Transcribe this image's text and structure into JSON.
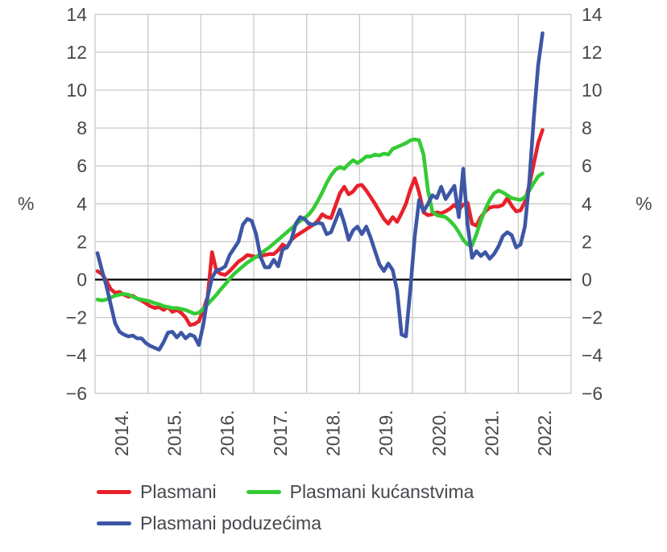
{
  "chart_data": {
    "type": "line",
    "title": "",
    "ylabel_left": "%",
    "ylabel_right": "%",
    "x_start": "2014-01",
    "x_end": "2022-06",
    "x_frequency": "monthly",
    "year_tick_labels": [
      "2014.",
      "2015.",
      "2016.",
      "2017.",
      "2018.",
      "2019.",
      "2020.",
      "2021.",
      "2022."
    ],
    "y_ticks": [
      14,
      12,
      10,
      8,
      6,
      4,
      2,
      0,
      -2,
      -4,
      -6
    ],
    "ylim": [
      -6,
      14
    ],
    "grid": true,
    "zero_line_color": "#000000",
    "grid_color": "#c9c9c9",
    "text_color": "#45484c",
    "legend_position": "bottom",
    "series": [
      {
        "name": "Plasmani",
        "color": "#e8212a",
        "values": [
          0.45,
          0.3,
          -0.05,
          -0.5,
          -0.7,
          -0.65,
          -0.8,
          -0.9,
          -0.85,
          -1.0,
          -1.1,
          -1.25,
          -1.4,
          -1.5,
          -1.45,
          -1.6,
          -1.45,
          -1.7,
          -1.6,
          -1.75,
          -2.0,
          -2.4,
          -2.35,
          -2.2,
          -1.6,
          -0.9,
          1.45,
          0.45,
          0.3,
          0.25,
          0.45,
          0.7,
          0.95,
          1.1,
          1.3,
          1.25,
          1.2,
          1.25,
          1.3,
          1.35,
          1.35,
          1.55,
          1.85,
          1.7,
          2.1,
          2.3,
          2.45,
          2.6,
          2.75,
          2.9,
          3.1,
          3.45,
          3.3,
          3.25,
          3.9,
          4.55,
          4.9,
          4.5,
          4.65,
          4.95,
          5.0,
          4.7,
          4.35,
          4.0,
          3.6,
          3.2,
          2.95,
          3.3,
          3.05,
          3.5,
          4.0,
          4.75,
          5.35,
          4.6,
          3.55,
          3.4,
          3.45,
          3.55,
          3.5,
          3.6,
          3.75,
          3.95,
          3.7,
          3.95,
          4.05,
          2.95,
          2.85,
          3.3,
          3.6,
          3.8,
          3.85,
          3.85,
          3.95,
          4.3,
          3.9,
          3.6,
          3.65,
          4.1,
          5.0,
          6.1,
          7.2,
          7.9
        ]
      },
      {
        "name": "Plasmani kućanstvima",
        "color": "#35cb35",
        "values": [
          -1.05,
          -1.1,
          -1.05,
          -0.95,
          -0.85,
          -0.8,
          -0.75,
          -0.8,
          -0.9,
          -1.0,
          -1.05,
          -1.1,
          -1.15,
          -1.25,
          -1.3,
          -1.4,
          -1.45,
          -1.5,
          -1.5,
          -1.55,
          -1.6,
          -1.7,
          -1.8,
          -1.75,
          -1.55,
          -1.3,
          -1.05,
          -0.8,
          -0.5,
          -0.25,
          0.05,
          0.3,
          0.5,
          0.7,
          0.9,
          1.05,
          1.2,
          1.35,
          1.55,
          1.7,
          1.9,
          2.1,
          2.3,
          2.5,
          2.7,
          2.9,
          3.1,
          3.25,
          3.45,
          3.75,
          4.15,
          4.6,
          5.1,
          5.5,
          5.8,
          5.95,
          5.85,
          6.1,
          6.3,
          6.15,
          6.3,
          6.5,
          6.5,
          6.6,
          6.55,
          6.65,
          6.6,
          6.9,
          7.0,
          7.1,
          7.2,
          7.35,
          7.4,
          7.35,
          6.6,
          4.7,
          3.6,
          3.4,
          3.35,
          3.3,
          3.1,
          2.85,
          2.5,
          2.1,
          1.85,
          1.8,
          2.4,
          3.1,
          3.7,
          4.2,
          4.55,
          4.7,
          4.6,
          4.45,
          4.3,
          4.25,
          4.2,
          4.35,
          4.7,
          5.1,
          5.45,
          5.6
        ]
      },
      {
        "name": "Plasmani poduzećima",
        "color": "#3d57a6",
        "values": [
          1.4,
          0.5,
          -0.3,
          -1.3,
          -2.3,
          -2.75,
          -2.9,
          -3.0,
          -2.95,
          -3.1,
          -3.1,
          -3.35,
          -3.5,
          -3.6,
          -3.7,
          -3.3,
          -2.8,
          -2.75,
          -3.05,
          -2.8,
          -3.1,
          -2.9,
          -3.0,
          -3.45,
          -2.4,
          -0.9,
          0.1,
          0.5,
          0.55,
          0.7,
          1.3,
          1.65,
          2.0,
          2.9,
          3.2,
          3.1,
          2.4,
          1.2,
          0.65,
          0.65,
          1.05,
          0.7,
          1.6,
          1.7,
          2.1,
          2.95,
          3.3,
          3.2,
          2.95,
          2.9,
          3.0,
          2.95,
          2.4,
          2.5,
          3.1,
          3.7,
          3.0,
          2.1,
          2.6,
          2.8,
          2.4,
          2.8,
          2.2,
          1.5,
          0.8,
          0.45,
          0.85,
          0.5,
          -0.6,
          -2.9,
          -3.0,
          -0.5,
          2.3,
          4.2,
          3.6,
          4.0,
          4.45,
          4.3,
          4.9,
          4.25,
          4.6,
          4.95,
          3.3,
          5.85,
          2.9,
          1.15,
          1.5,
          1.25,
          1.45,
          1.1,
          1.35,
          1.75,
          2.3,
          2.5,
          2.35,
          1.7,
          1.85,
          2.8,
          5.2,
          8.5,
          11.3,
          13.0
        ]
      }
    ]
  },
  "legend": {
    "items": [
      {
        "label": "Plasmani"
      },
      {
        "label": "Plasmani kućanstvima"
      },
      {
        "label": "Plasmani poduzećima"
      }
    ]
  }
}
